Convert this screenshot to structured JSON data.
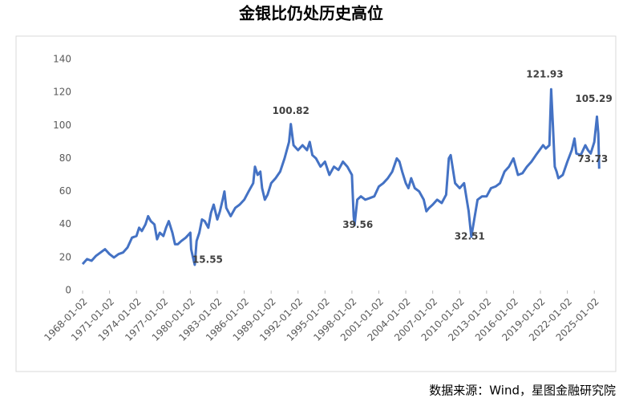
{
  "chart_data": {
    "type": "line",
    "title": "金银比仍处历史高位",
    "source": "数据来源：Wind，星图金融研究院",
    "x": [
      "1968-01-02",
      "1968-07-01",
      "1969-01-02",
      "1969-07-01",
      "1970-01-02",
      "1970-07-01",
      "1971-01-02",
      "1971-07-01",
      "1972-01-02",
      "1972-07-01",
      "1973-01-02",
      "1973-07-01",
      "1974-01-02",
      "1974-04-20",
      "1974-08-08",
      "1975-01-02",
      "1975-04-20",
      "1975-08-08",
      "1976-01-02",
      "1976-04-20",
      "1976-08-08",
      "1977-01-02",
      "1977-04-20",
      "1977-08-08",
      "1978-01-02",
      "1978-04-20",
      "1978-08-08",
      "1979-01-02",
      "1979-07-01",
      "1980-01-02",
      "1980-02-05",
      "1980-04-20",
      "1980-07-01",
      "1980-09-12",
      "1981-01-02",
      "1981-04-20",
      "1981-08-08",
      "1982-01-02",
      "1982-04-20",
      "1982-08-08",
      "1983-01-02",
      "1983-04-20",
      "1983-08-08",
      "1983-10-20",
      "1984-01-02",
      "1984-07-01",
      "1985-01-02",
      "1985-07-01",
      "1986-01-02",
      "1986-07-01",
      "1987-01-02",
      "1987-03-15",
      "1987-07-01",
      "1987-10-20",
      "1988-01-02",
      "1988-04-20",
      "1988-08-08",
      "1989-01-02",
      "1989-07-01",
      "1990-01-02",
      "1990-07-01",
      "1991-01-02",
      "1991-03-15",
      "1991-07-01",
      "1992-01-02",
      "1992-07-01",
      "1993-01-02",
      "1993-04-20",
      "1993-08-08",
      "1994-01-02",
      "1994-07-01",
      "1995-01-02",
      "1995-07-01",
      "1996-01-02",
      "1996-07-01",
      "1997-01-02",
      "1997-07-01",
      "1998-01-02",
      "1998-03-15",
      "1998-04-20",
      "1998-08-08",
      "1999-01-02",
      "1999-07-01",
      "2000-01-02",
      "2000-07-01",
      "2001-01-02",
      "2001-07-01",
      "2002-01-02",
      "2002-07-01",
      "2003-01-02",
      "2003-04-20",
      "2003-08-08",
      "2004-01-02",
      "2004-04-20",
      "2004-08-08",
      "2005-01-02",
      "2005-07-01",
      "2006-01-02",
      "2006-04-20",
      "2006-08-08",
      "2007-01-02",
      "2007-07-01",
      "2008-01-02",
      "2008-07-01",
      "2008-10-20",
      "2009-01-02",
      "2009-07-01",
      "2010-01-02",
      "2010-07-01",
      "2011-01-02",
      "2011-04-20",
      "2011-08-08",
      "2012-01-02",
      "2012-07-01",
      "2013-01-02",
      "2013-07-01",
      "2014-01-02",
      "2014-07-01",
      "2015-01-02",
      "2015-07-01",
      "2016-01-02",
      "2016-07-01",
      "2017-01-02",
      "2017-07-01",
      "2018-01-02",
      "2018-07-01",
      "2018-11-25",
      "2019-04-20",
      "2019-08-08",
      "2020-01-02",
      "2020-03-15",
      "2020-05-25",
      "2020-08-08",
      "2020-10-20",
      "2021-01-02",
      "2021-07-01",
      "2022-01-02",
      "2022-07-01",
      "2022-10-20",
      "2023-01-02",
      "2023-07-01",
      "2024-01-02",
      "2024-04-20",
      "2024-08-08",
      "2025-01-02",
      "2025-04-20",
      "2025-06-15",
      "2025-07-20"
    ],
    "series": [
      {
        "name": "金银比",
        "color": "#4472c4",
        "values": [
          16,
          19,
          18,
          21,
          23,
          25,
          22,
          20,
          22,
          23,
          26,
          32,
          33,
          38,
          36,
          40,
          45,
          42,
          40,
          31,
          35,
          33,
          38,
          42,
          35,
          28,
          28,
          30,
          32,
          35,
          25,
          20,
          15.55,
          30,
          35,
          43,
          42,
          38,
          47,
          52,
          43,
          48,
          55,
          60,
          50,
          45,
          50,
          52,
          55,
          60,
          65,
          75,
          70,
          72,
          62,
          55,
          58,
          65,
          68,
          72,
          80,
          90,
          100.82,
          88,
          85,
          88,
          85,
          90,
          82,
          80,
          75,
          78,
          70,
          75,
          73,
          78,
          75,
          70,
          45,
          39.56,
          55,
          57,
          55,
          56,
          57,
          63,
          65,
          68,
          72,
          80,
          78,
          72,
          65,
          62,
          68,
          62,
          60,
          55,
          48,
          50,
          52,
          55,
          53,
          58,
          80,
          82,
          65,
          62,
          65,
          48,
          32.51,
          42,
          55,
          57,
          57,
          62,
          63,
          65,
          72,
          75,
          80,
          70,
          71,
          75,
          78,
          82,
          85,
          88,
          86,
          88,
          121.93,
          100,
          75,
          72,
          68,
          70,
          78,
          85,
          92,
          83,
          82,
          88,
          85,
          83,
          90,
          105.29,
          95,
          73.73
        ]
      }
    ],
    "annotations": [
      {
        "label": "15.55",
        "x": "1980-07-01",
        "y": 15.55
      },
      {
        "label": "100.82",
        "x": "1991-03-15",
        "y": 100.82
      },
      {
        "label": "39.56",
        "x": "1998-04-20",
        "y": 39.56
      },
      {
        "label": "32.51",
        "x": "2011-04-20",
        "y": 32.51
      },
      {
        "label": "121.93",
        "x": "2020-03-15",
        "y": 121.93
      },
      {
        "label": "105.29",
        "x": "2025-04-20",
        "y": 105.29
      },
      {
        "label": "73.73",
        "x": "2025-07-20",
        "y": 73.73
      }
    ],
    "xlim": [
      "1967-04-15",
      "2026-06-01"
    ],
    "xticks": [
      "1968-01-02",
      "1971-01-02",
      "1974-01-02",
      "1977-01-02",
      "1980-01-02",
      "1983-01-02",
      "1986-01-02",
      "1989-01-02",
      "1992-01-02",
      "1995-01-02",
      "1998-01-02",
      "2001-01-02",
      "2004-01-02",
      "2007-01-02",
      "2010-01-02",
      "2013-01-02",
      "2016-01-02",
      "2019-01-02",
      "2022-01-02",
      "2025-01-02"
    ],
    "ylim": [
      0,
      140
    ],
    "yticks": [
      0,
      20,
      40,
      60,
      80,
      100,
      120,
      140
    ],
    "grid": false
  }
}
